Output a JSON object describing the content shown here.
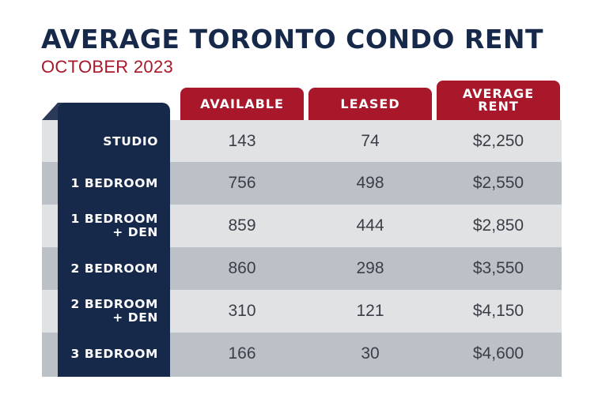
{
  "chart_data": {
    "type": "table",
    "title": "AVERAGE TORONTO CONDO RENT",
    "subtitle": "OCTOBER 2023",
    "columns": [
      "AVAILABLE",
      "LEASED",
      "AVERAGE\nRENT"
    ],
    "rows": [
      {
        "label": "STUDIO",
        "available": "143",
        "leased": "74",
        "average_rent": "$2,250"
      },
      {
        "label": "1 BEDROOM",
        "available": "756",
        "leased": "498",
        "average_rent": "$2,550"
      },
      {
        "label": "1 BEDROOM\n+ DEN",
        "available": "859",
        "leased": "444",
        "average_rent": "$2,850"
      },
      {
        "label": "2 BEDROOM",
        "available": "860",
        "leased": "298",
        "average_rent": "$3,550"
      },
      {
        "label": "2 BEDROOM\n+ DEN",
        "available": "310",
        "leased": "121",
        "average_rent": "$4,150"
      },
      {
        "label": "3 BEDROOM",
        "available": "166",
        "leased": "30",
        "average_rent": "$4,600"
      }
    ]
  },
  "colors": {
    "navy": "#16294a",
    "red": "#a8182a",
    "band_light": "#e1e2e4",
    "band_dark": "#bcc1c8"
  }
}
